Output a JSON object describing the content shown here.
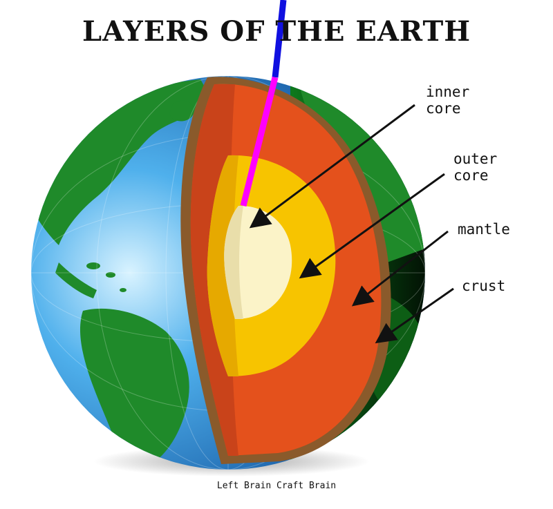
{
  "title": "LAYERS OF THE EARTH",
  "labels": {
    "inner_core": "inner\ncore",
    "outer_core": "outer\ncore",
    "mantle": "mantle",
    "crust": "crust"
  },
  "credit": "Left Brain Craft Brain",
  "colors": {
    "ocean": "#2f8fdc",
    "land": "#1f8a2a",
    "crust": "#8a5a2b",
    "mantle": "#e4511c",
    "outer_core": "#f7c400",
    "inner_core": "#fbf3c8",
    "axis_blue": "#1010e0",
    "axis_magenta": "#ff00ff"
  },
  "icons": [
    "earth-globe-icon",
    "pointer-arrow-icon"
  ]
}
